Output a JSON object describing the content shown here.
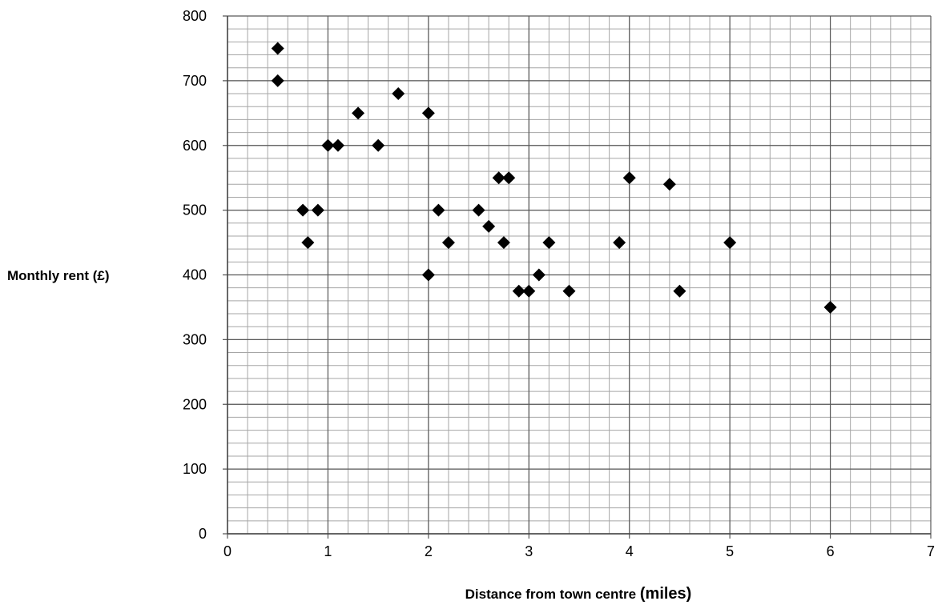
{
  "chart_data": {
    "type": "scatter",
    "xlabel": "Distance from town centre",
    "xlabel_unit": "(miles)",
    "ylabel": "Monthly rent (£)",
    "xlim": [
      0,
      7
    ],
    "ylim": [
      0,
      800
    ],
    "x_ticks": [
      "0",
      "1",
      "2",
      "3",
      "4",
      "5",
      "6",
      "7"
    ],
    "y_ticks": [
      "0",
      "100",
      "200",
      "300",
      "400",
      "500",
      "600",
      "700",
      "800"
    ],
    "grid": true,
    "x_minor_step": 0.2,
    "y_minor_step": 20,
    "marker": "diamond",
    "marker_color": "#000000",
    "grid_color": "#a6a6a6",
    "points": [
      {
        "x": 0.5,
        "y": 750
      },
      {
        "x": 0.5,
        "y": 700
      },
      {
        "x": 0.75,
        "y": 500
      },
      {
        "x": 0.8,
        "y": 450
      },
      {
        "x": 0.9,
        "y": 500
      },
      {
        "x": 1.0,
        "y": 600
      },
      {
        "x": 1.1,
        "y": 600
      },
      {
        "x": 1.3,
        "y": 650
      },
      {
        "x": 1.5,
        "y": 600
      },
      {
        "x": 1.7,
        "y": 680
      },
      {
        "x": 2.0,
        "y": 650
      },
      {
        "x": 2.0,
        "y": 400
      },
      {
        "x": 2.1,
        "y": 500
      },
      {
        "x": 2.2,
        "y": 450
      },
      {
        "x": 2.5,
        "y": 500
      },
      {
        "x": 2.6,
        "y": 475
      },
      {
        "x": 2.7,
        "y": 550
      },
      {
        "x": 2.75,
        "y": 450
      },
      {
        "x": 2.8,
        "y": 550
      },
      {
        "x": 2.9,
        "y": 375
      },
      {
        "x": 3.0,
        "y": 375
      },
      {
        "x": 3.1,
        "y": 400
      },
      {
        "x": 3.2,
        "y": 450
      },
      {
        "x": 3.4,
        "y": 375
      },
      {
        "x": 3.9,
        "y": 450
      },
      {
        "x": 4.0,
        "y": 550
      },
      {
        "x": 4.4,
        "y": 540
      },
      {
        "x": 4.5,
        "y": 375
      },
      {
        "x": 5.0,
        "y": 450
      },
      {
        "x": 6.0,
        "y": 350
      }
    ]
  }
}
